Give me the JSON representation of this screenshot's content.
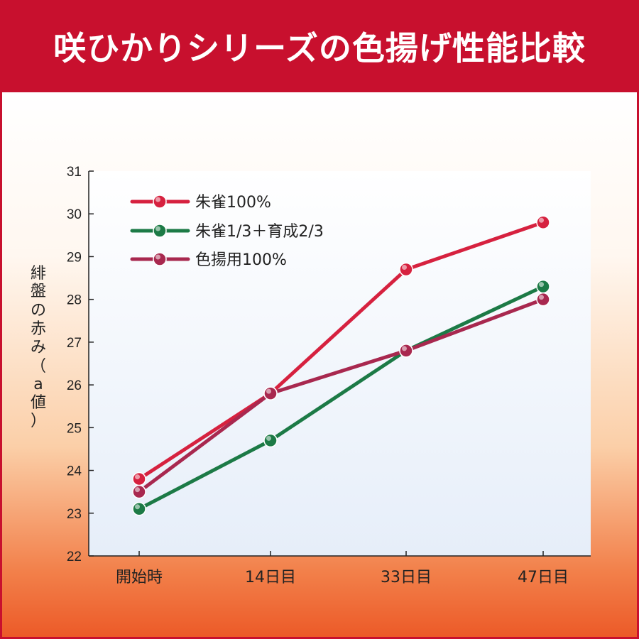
{
  "title": "咲ひかりシリーズの色揚げ性能比較",
  "chart_data": {
    "type": "line",
    "categories": [
      "開始時",
      "14日目",
      "33日目",
      "47日目"
    ],
    "ylabel_chars": [
      "緋",
      "盤",
      "の",
      "赤",
      "み",
      "（",
      "a",
      "値",
      "）"
    ],
    "ylim": [
      22,
      31
    ],
    "yticks": [
      22,
      23,
      24,
      25,
      26,
      27,
      28,
      29,
      30,
      31
    ],
    "grid": false,
    "legend_position": "top-left",
    "series": [
      {
        "name": "朱雀100%",
        "color": "#d6213f",
        "values": [
          23.8,
          25.8,
          28.7,
          29.8
        ]
      },
      {
        "name": "朱雀1/3＋育成2/3",
        "color": "#1c7a46",
        "values": [
          23.1,
          24.7,
          26.8,
          28.3
        ]
      },
      {
        "name": "色揚用100%",
        "color": "#a8284f",
        "values": [
          23.5,
          25.8,
          26.8,
          28.0
        ]
      }
    ]
  }
}
